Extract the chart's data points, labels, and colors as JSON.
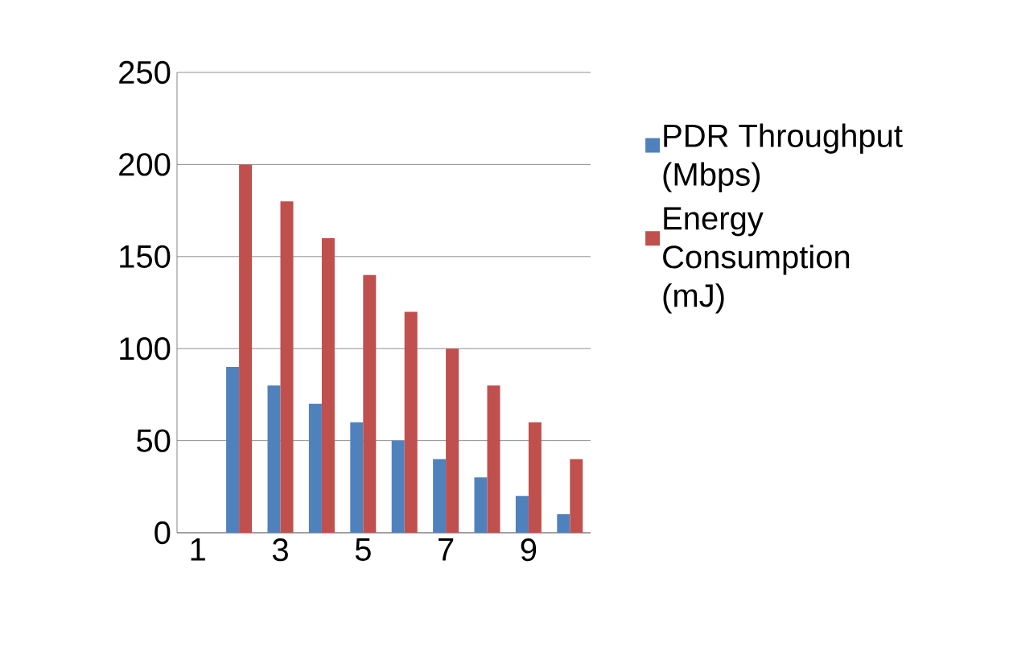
{
  "chart_data": {
    "type": "bar",
    "categories": [
      "1",
      null,
      "3",
      null,
      "5",
      null,
      "7",
      null,
      "9",
      null
    ],
    "series": [
      {
        "name": "PDR Throughput (Mbps)",
        "color": "#4f81bd",
        "values": [
          0,
          90,
          80,
          70,
          60,
          50,
          40,
          30,
          20,
          10
        ]
      },
      {
        "name": "Energy Consumption (mJ)",
        "color": "#c0504d",
        "values": [
          0,
          200,
          180,
          160,
          140,
          120,
          100,
          80,
          60,
          40
        ]
      }
    ],
    "ylim": [
      0,
      250
    ],
    "yticks": [
      0,
      50,
      100,
      150,
      200,
      250
    ],
    "grid": "y",
    "legend": "right"
  }
}
